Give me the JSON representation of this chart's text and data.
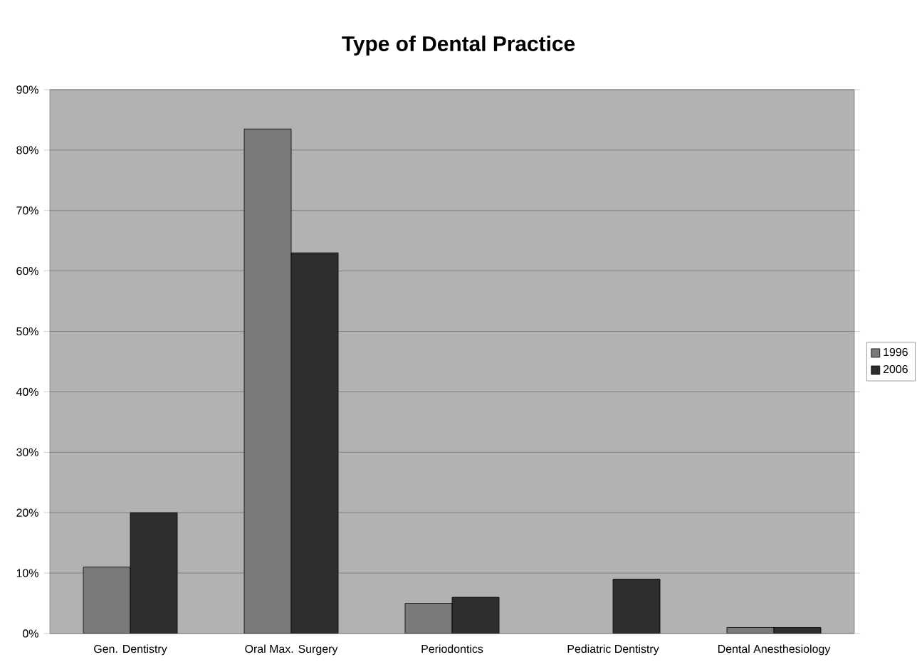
{
  "chart_data": {
    "type": "bar",
    "title": "Type of Dental Practice",
    "categories": [
      "Gen. Dentistry",
      "Oral Max. Surgery",
      "Periodontics",
      "Pediatric Dentistry",
      "Dental Anesthesiology"
    ],
    "series": [
      {
        "name": "1996",
        "color": "#7a7a7a",
        "values": [
          11,
          83.5,
          5,
          null,
          1
        ]
      },
      {
        "name": "2006",
        "color": "#2e2e2e",
        "values": [
          20,
          63,
          6,
          9,
          1
        ]
      }
    ],
    "ylim": [
      0,
      90
    ],
    "yticks": [
      {
        "value": 0,
        "label": "0%"
      },
      {
        "value": 10,
        "label": "10%"
      },
      {
        "value": 20,
        "label": "20%"
      },
      {
        "value": 30,
        "label": "30%"
      },
      {
        "value": 40,
        "label": "40%"
      },
      {
        "value": 50,
        "label": "50%"
      },
      {
        "value": 60,
        "label": "60%"
      },
      {
        "value": 70,
        "label": "70%"
      },
      {
        "value": 80,
        "label": "80%"
      },
      {
        "value": 90,
        "label": "90%"
      }
    ],
    "grid": "y",
    "legend": "right"
  }
}
